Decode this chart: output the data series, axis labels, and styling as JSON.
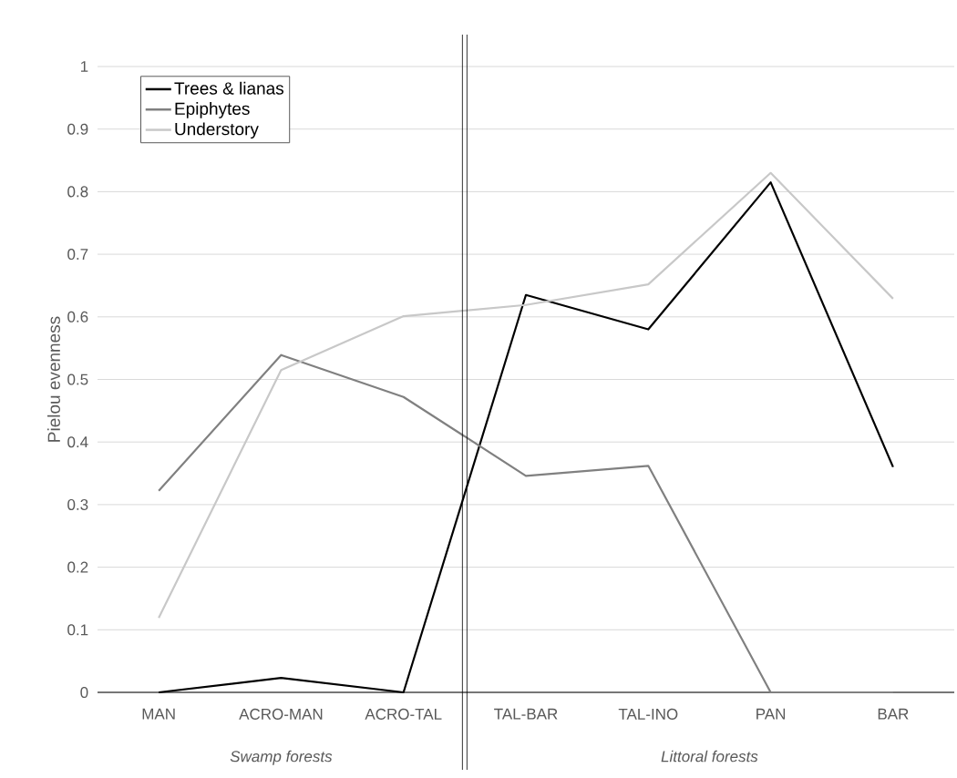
{
  "chart_data": {
    "type": "line",
    "ylabel": "Pielou evenness",
    "categories": [
      "MAN",
      "ACRO-MAN",
      "ACRO-TAL",
      "TAL-BAR",
      "TAL-INO",
      "PAN",
      "BAR"
    ],
    "series": [
      {
        "name": "Trees & lianas",
        "color": "#000000",
        "values": [
          0,
          0.023,
          0,
          0.635,
          0.58,
          0.815,
          0.36
        ]
      },
      {
        "name": "Epiphytes",
        "color": "#808080",
        "values": [
          0.322,
          0.539,
          0.472,
          0.346,
          0.362,
          0,
          0
        ]
      },
      {
        "name": "Understory",
        "color": "#c8c8c8",
        "values": [
          0.119,
          0.515,
          0.601,
          0.619,
          0.652,
          0.83,
          0.629
        ]
      }
    ],
    "ylim": [
      0,
      1
    ],
    "yticks": [
      0,
      0.1,
      0.2,
      0.3,
      0.4,
      0.5,
      0.6,
      0.7,
      0.8,
      0.9,
      1
    ],
    "grid": "y",
    "legend": "top left",
    "marker": "none",
    "line_style": "solid",
    "annotations": [
      "Swamp forests",
      "Littoral forests"
    ]
  }
}
